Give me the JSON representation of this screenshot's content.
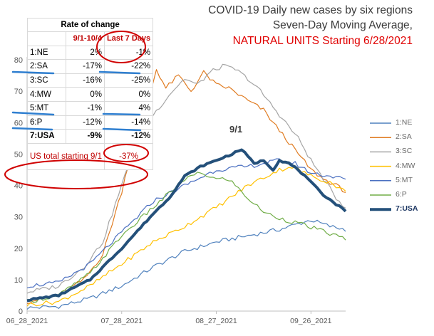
{
  "header": {
    "title_line1": "COVID-19 Daily new cases by six regions",
    "title_line2": "Seven-Day Moving Average,",
    "title_line3": "NATURAL UNITS Starting 6/28/2021"
  },
  "rate_table": {
    "title": "Rate of change",
    "col1_header": "9/1-10/4",
    "col2_header": "Last 7 Days",
    "rows": [
      {
        "name": "1:NE",
        "v1": "2%",
        "v2": "-1%"
      },
      {
        "name": "2:SA",
        "v1": "-17%",
        "v2": "-22%"
      },
      {
        "name": "3:SC",
        "v1": "-16%",
        "v2": "-25%"
      },
      {
        "name": "4:MW",
        "v1": "0%",
        "v2": "0%"
      },
      {
        "name": "5:MT",
        "v1": "-1%",
        "v2": "4%"
      },
      {
        "name": "6:P",
        "v1": "-12%",
        "v2": "-14%"
      },
      {
        "name": "7:USA",
        "v1": "-9%",
        "v2": "-12%"
      }
    ],
    "total_label": "US total starting 9/1",
    "total_value": "-37%"
  },
  "annotation": {
    "peak_label": "9/1"
  },
  "colors": {
    "NE": "#4f81bd",
    "SA": "#e07b20",
    "SC": "#a5a5a5",
    "MW": "#ffc000",
    "MT": "#4a6fc1",
    "P": "#70ad47",
    "USA": "#24507a",
    "highlight_red": "#d00000",
    "underline_blue": "#2f7fd0"
  },
  "chart_data": {
    "type": "line",
    "x_ticks": [
      "06_28_2021",
      "07_28_2021",
      "08_27_2021",
      "09_26_2021"
    ],
    "ylim": [
      0,
      80
    ],
    "y_ticks": [
      0,
      10,
      20,
      30,
      40,
      50,
      60,
      70,
      80
    ],
    "x_start": "06_28_2021",
    "n_days": 102,
    "grid": false,
    "legend_position": "right",
    "series": [
      {
        "name": "1:NE",
        "color": "#4f81bd",
        "width": 1.2,
        "keys": [
          [
            0,
            1
          ],
          [
            10,
            1.5
          ],
          [
            20,
            4
          ],
          [
            30,
            8
          ],
          [
            40,
            14
          ],
          [
            50,
            19
          ],
          [
            60,
            22
          ],
          [
            70,
            24
          ],
          [
            80,
            26
          ],
          [
            90,
            29
          ],
          [
            96,
            27
          ],
          [
            101,
            26
          ]
        ]
      },
      {
        "name": "2:SA",
        "color": "#e07b20",
        "width": 1.2,
        "keys": [
          [
            0,
            3
          ],
          [
            10,
            5
          ],
          [
            18,
            10
          ],
          [
            24,
            18
          ],
          [
            30,
            38
          ],
          [
            34,
            55
          ],
          [
            38,
            65
          ],
          [
            41,
            77
          ],
          [
            44,
            71
          ],
          [
            48,
            75
          ],
          [
            52,
            70
          ],
          [
            56,
            76
          ],
          [
            60,
            72
          ],
          [
            64,
            71
          ],
          [
            70,
            67
          ],
          [
            75,
            64
          ],
          [
            78,
            60
          ],
          [
            82,
            55
          ],
          [
            86,
            50
          ],
          [
            90,
            45
          ],
          [
            94,
            42
          ],
          [
            98,
            40
          ],
          [
            101,
            38
          ]
        ]
      },
      {
        "name": "3:SC",
        "color": "#a5a5a5",
        "width": 1.2,
        "keys": [
          [
            0,
            6
          ],
          [
            10,
            8
          ],
          [
            18,
            14
          ],
          [
            24,
            22
          ],
          [
            30,
            40
          ],
          [
            34,
            52
          ],
          [
            38,
            60
          ],
          [
            42,
            65
          ],
          [
            46,
            70
          ],
          [
            50,
            74
          ],
          [
            54,
            72
          ],
          [
            58,
            76
          ],
          [
            62,
            78
          ],
          [
            66,
            77
          ],
          [
            70,
            74
          ],
          [
            74,
            70
          ],
          [
            78,
            65
          ],
          [
            82,
            60
          ],
          [
            86,
            55
          ],
          [
            90,
            48
          ],
          [
            94,
            42
          ],
          [
            98,
            36
          ],
          [
            101,
            33
          ]
        ]
      },
      {
        "name": "4:MW",
        "color": "#ffc000",
        "width": 1.2,
        "keys": [
          [
            0,
            2
          ],
          [
            10,
            3
          ],
          [
            20,
            8
          ],
          [
            30,
            15
          ],
          [
            40,
            22
          ],
          [
            50,
            27
          ],
          [
            60,
            33
          ],
          [
            70,
            40
          ],
          [
            80,
            45
          ],
          [
            84,
            46
          ],
          [
            90,
            43
          ],
          [
            96,
            41
          ],
          [
            101,
            38
          ]
        ]
      },
      {
        "name": "5:MT",
        "color": "#4a6fc1",
        "width": 1.2,
        "keys": [
          [
            0,
            8
          ],
          [
            10,
            9
          ],
          [
            20,
            15
          ],
          [
            30,
            25
          ],
          [
            40,
            35
          ],
          [
            50,
            40
          ],
          [
            60,
            45
          ],
          [
            70,
            46
          ],
          [
            80,
            48
          ],
          [
            85,
            47
          ],
          [
            90,
            44
          ],
          [
            96,
            43
          ],
          [
            101,
            42
          ]
        ]
      },
      {
        "name": "6:P",
        "color": "#70ad47",
        "width": 1.2,
        "keys": [
          [
            0,
            3
          ],
          [
            10,
            5
          ],
          [
            20,
            12
          ],
          [
            30,
            24
          ],
          [
            40,
            33
          ],
          [
            50,
            42
          ],
          [
            55,
            44
          ],
          [
            60,
            42
          ],
          [
            64,
            42
          ],
          [
            68,
            38
          ],
          [
            72,
            34
          ],
          [
            76,
            31
          ],
          [
            82,
            29
          ],
          [
            86,
            28
          ],
          [
            92,
            26
          ],
          [
            98,
            24
          ],
          [
            101,
            23
          ]
        ]
      },
      {
        "name": "7:USA",
        "color": "#24507a",
        "width": 4,
        "keys": [
          [
            0,
            3.5
          ],
          [
            10,
            5
          ],
          [
            20,
            10
          ],
          [
            30,
            20
          ],
          [
            40,
            31
          ],
          [
            45,
            36
          ],
          [
            50,
            43
          ],
          [
            55,
            46
          ],
          [
            60,
            48
          ],
          [
            65,
            50
          ],
          [
            68,
            51.5
          ],
          [
            72,
            47
          ],
          [
            75,
            48
          ],
          [
            78,
            45
          ],
          [
            80,
            48
          ],
          [
            83,
            47
          ],
          [
            86,
            45
          ],
          [
            90,
            41
          ],
          [
            94,
            37
          ],
          [
            98,
            34
          ],
          [
            101,
            32
          ]
        ]
      }
    ]
  }
}
